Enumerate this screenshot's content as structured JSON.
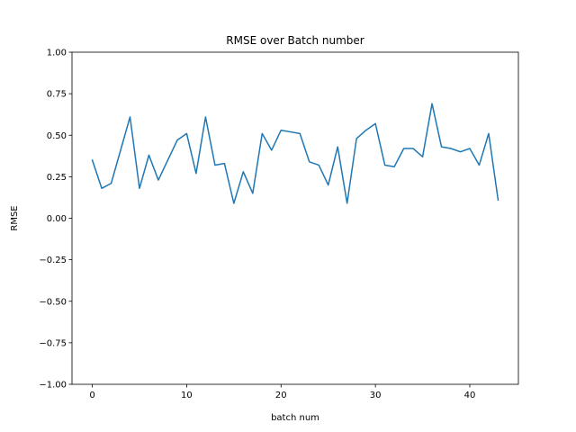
{
  "chart_data": {
    "type": "line",
    "title": "RMSE over Batch number",
    "xlabel": "batch num",
    "ylabel": "RMSE",
    "xlim": [
      -2.15,
      45.15
    ],
    "ylim": [
      -1.0,
      1.0
    ],
    "xticks": [
      0,
      10,
      20,
      30,
      40
    ],
    "xtick_labels": [
      "0",
      "10",
      "20",
      "30",
      "40"
    ],
    "yticks": [
      -1.0,
      -0.75,
      -0.5,
      -0.25,
      0.0,
      0.25,
      0.5,
      0.75,
      1.0
    ],
    "ytick_labels": [
      "−1.00",
      "−0.75",
      "−0.50",
      "−0.25",
      "0.00",
      "0.25",
      "0.50",
      "0.75",
      "1.00"
    ],
    "grid": false,
    "legend": "none",
    "series": [
      {
        "color": "#1f77b4",
        "x": [
          0,
          1,
          2,
          3,
          4,
          5,
          6,
          7,
          8,
          9,
          10,
          11,
          12,
          13,
          14,
          15,
          16,
          17,
          18,
          19,
          20,
          21,
          22,
          23,
          24,
          25,
          26,
          27,
          28,
          29,
          30,
          31,
          32,
          33,
          34,
          35,
          36,
          37,
          38,
          39,
          40,
          41,
          42,
          43
        ],
        "y": [
          0.35,
          0.18,
          0.21,
          0.41,
          0.61,
          0.18,
          0.38,
          0.23,
          0.35,
          0.47,
          0.51,
          0.27,
          0.61,
          0.32,
          0.33,
          0.09,
          0.28,
          0.15,
          0.51,
          0.41,
          0.53,
          0.52,
          0.51,
          0.34,
          0.32,
          0.2,
          0.43,
          0.09,
          0.48,
          0.53,
          0.57,
          0.32,
          0.31,
          0.42,
          0.42,
          0.37,
          0.69,
          0.43,
          0.42,
          0.4,
          0.42,
          0.32,
          0.51,
          0.11
        ]
      }
    ]
  }
}
